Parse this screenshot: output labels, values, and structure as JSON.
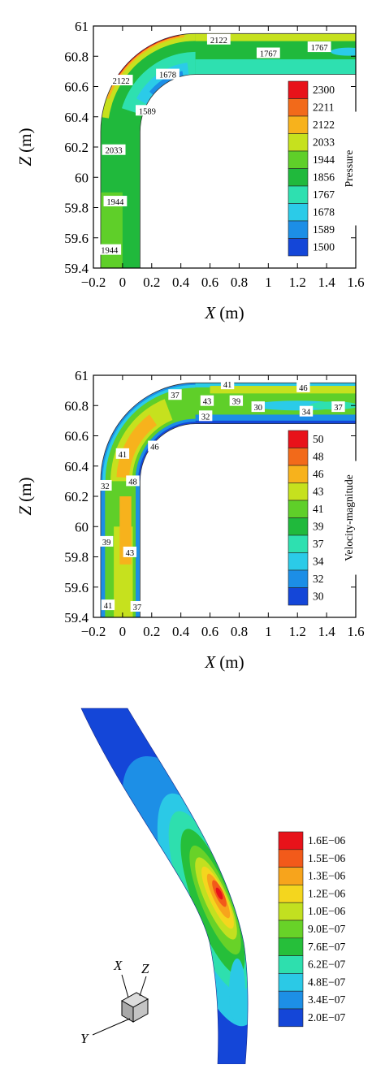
{
  "chart_data": [
    {
      "type": "contour",
      "xlabel_var": "X",
      "xlabel_unit": "(m)",
      "ylabel_var": "Z",
      "ylabel_unit": "(m)",
      "xlim": [
        -0.2,
        1.6
      ],
      "ylim": [
        59.4,
        61
      ],
      "xticks": [
        "−0.2",
        "0",
        "0.2",
        "0.4",
        "0.6",
        "0.8",
        "1",
        "1.2",
        "1.4",
        "1.6"
      ],
      "xtick_values": [
        -0.2,
        0,
        0.2,
        0.4,
        0.6,
        0.8,
        1,
        1.2,
        1.4,
        1.6
      ],
      "yticks": [
        "61",
        "60.8",
        "60.6",
        "60.4",
        "60.2",
        "60",
        "59.8",
        "59.6",
        "59.4"
      ],
      "ytick_values": [
        61,
        60.8,
        60.6,
        60.4,
        60.2,
        60,
        59.8,
        59.6,
        59.4
      ],
      "legend_title": "Pressure",
      "legend_levels": [
        "2300",
        "2211",
        "2122",
        "2033",
        "1944",
        "1856",
        "1767",
        "1678",
        "1589",
        "1500"
      ],
      "legend_colors": [
        "#e8121a",
        "#f26a1a",
        "#f7b21c",
        "#c6e11e",
        "#5fcf29",
        "#20b93c",
        "#2ee0b0",
        "#2bcbe8",
        "#1c8ee6",
        "#1446d8"
      ],
      "contour_labels": [
        {
          "text": "2122",
          "x": 0.66,
          "y": 60.91
        },
        {
          "text": "1767",
          "x": 1.0,
          "y": 60.82
        },
        {
          "text": "1767",
          "x": 1.35,
          "y": 60.86
        },
        {
          "text": "2122",
          "x": -0.01,
          "y": 60.64
        },
        {
          "text": "1678",
          "x": 0.31,
          "y": 60.68
        },
        {
          "text": "1589",
          "x": 0.17,
          "y": 60.44
        },
        {
          "text": "2033",
          "x": -0.06,
          "y": 60.18
        },
        {
          "text": "1944",
          "x": -0.05,
          "y": 59.84
        },
        {
          "text": "1944",
          "x": -0.09,
          "y": 59.52
        }
      ]
    },
    {
      "type": "contour",
      "xlabel_var": "X",
      "xlabel_unit": "(m)",
      "ylabel_var": "Z",
      "ylabel_unit": "(m)",
      "xlim": [
        -0.2,
        1.6
      ],
      "ylim": [
        59.4,
        61
      ],
      "xticks": [
        "−0.2",
        "0",
        "0.2",
        "0.4",
        "0.6",
        "0.8",
        "1",
        "1.2",
        "1.4",
        "1.6"
      ],
      "xtick_values": [
        -0.2,
        0,
        0.2,
        0.4,
        0.6,
        0.8,
        1,
        1.2,
        1.4,
        1.6
      ],
      "yticks": [
        "61",
        "60.8",
        "60.6",
        "60.4",
        "60.2",
        "60",
        "59.8",
        "59.6",
        "59.4"
      ],
      "ytick_values": [
        61,
        60.8,
        60.6,
        60.4,
        60.2,
        60,
        59.8,
        59.6,
        59.4
      ],
      "legend_title": "Velocity-magnitude",
      "legend_levels": [
        "50",
        "48",
        "46",
        "43",
        "41",
        "39",
        "37",
        "34",
        "32",
        "30"
      ],
      "legend_colors": [
        "#e8121a",
        "#f26a1a",
        "#f7b21c",
        "#c6e11e",
        "#5fcf29",
        "#20b93c",
        "#2ee0b0",
        "#2bcbe8",
        "#1c8ee6",
        "#1446d8"
      ],
      "contour_labels": [
        {
          "text": "41",
          "x": 0.72,
          "y": 60.94
        },
        {
          "text": "46",
          "x": 1.24,
          "y": 60.92
        },
        {
          "text": "37",
          "x": 0.36,
          "y": 60.87
        },
        {
          "text": "43",
          "x": 0.58,
          "y": 60.83
        },
        {
          "text": "39",
          "x": 0.78,
          "y": 60.83
        },
        {
          "text": "30",
          "x": 0.93,
          "y": 60.79
        },
        {
          "text": "34",
          "x": 1.26,
          "y": 60.76
        },
        {
          "text": "37",
          "x": 1.48,
          "y": 60.79
        },
        {
          "text": "32",
          "x": 0.57,
          "y": 60.73
        },
        {
          "text": "46",
          "x": 0.22,
          "y": 60.53
        },
        {
          "text": "41",
          "x": 0.0,
          "y": 60.48
        },
        {
          "text": "48",
          "x": 0.07,
          "y": 60.3
        },
        {
          "text": "32",
          "x": -0.12,
          "y": 60.27
        },
        {
          "text": "39",
          "x": -0.11,
          "y": 59.9
        },
        {
          "text": "43",
          "x": 0.05,
          "y": 59.83
        },
        {
          "text": "41",
          "x": -0.1,
          "y": 59.48
        },
        {
          "text": "37",
          "x": 0.1,
          "y": 59.47
        }
      ]
    },
    {
      "type": "contour3d",
      "legend_levels": [
        "1.6E−06",
        "1.5E−06",
        "1.3E−06",
        "1.2E−06",
        "1.0E−06",
        "9.0E−07",
        "7.6E−07",
        "6.2E−07",
        "4.8E−07",
        "3.4E−07",
        "2.0E−07"
      ],
      "legend_colors": [
        "#e8121a",
        "#f25a1a",
        "#f7a41c",
        "#f4d61e",
        "#c2e020",
        "#68d228",
        "#26bf3a",
        "#2edfae",
        "#2bc9e6",
        "#1d8fe6",
        "#1446d8"
      ],
      "triad_labels": {
        "x": "X",
        "z": "Z",
        "y": "Y"
      }
    }
  ]
}
